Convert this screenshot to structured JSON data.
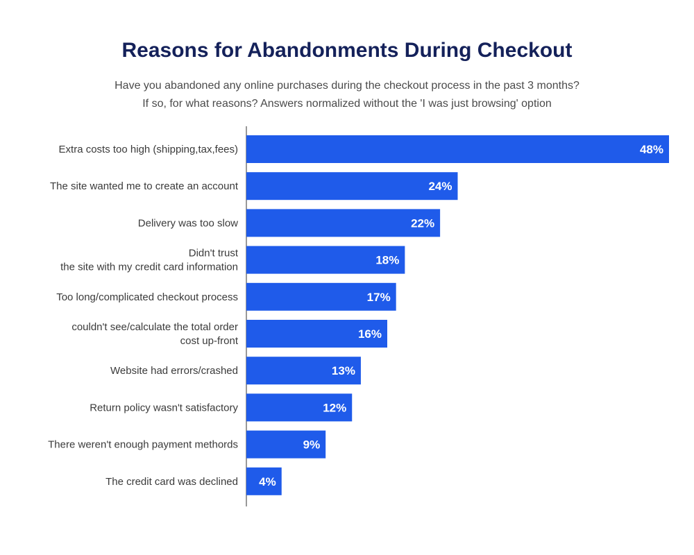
{
  "header": {
    "title": "Reasons for Abandonments During Checkout",
    "subtitle_line1": "Have you abandoned any online purchases during the checkout process in the past 3 months?",
    "subtitle_line2": "If so, for what reasons? Answers normalized without the 'I was just browsing' option"
  },
  "colors": {
    "bar": "#1f5bea",
    "title": "#14215a",
    "axis": "#333333"
  },
  "chart_data": {
    "type": "bar",
    "orientation": "horizontal",
    "title": "Reasons for Abandonments During Checkout",
    "xlabel": "",
    "ylabel": "",
    "xlim": [
      0,
      48
    ],
    "grid": false,
    "legend": "none",
    "categories": [
      [
        "Extra costs too high (shipping,tax,fees)"
      ],
      [
        "The site wanted me to create an account"
      ],
      [
        "Delivery was too slow"
      ],
      [
        "Didn't trust",
        "the site with my credit card information"
      ],
      [
        "Too long/complicated checkout process"
      ],
      [
        "couldn't see/calculate the total order",
        "cost up-front"
      ],
      [
        "Website had errors/crashed"
      ],
      [
        "Return policy wasn't satisfactory"
      ],
      [
        "There weren't enough payment methords"
      ],
      [
        "The credit card was declined"
      ]
    ],
    "values": [
      48,
      24,
      22,
      18,
      17,
      16,
      13,
      12,
      9,
      4
    ],
    "value_labels": [
      "48%",
      "24%",
      "22%",
      "18%",
      "17%",
      "16%",
      "13%",
      "12%",
      "9%",
      "4%"
    ]
  }
}
